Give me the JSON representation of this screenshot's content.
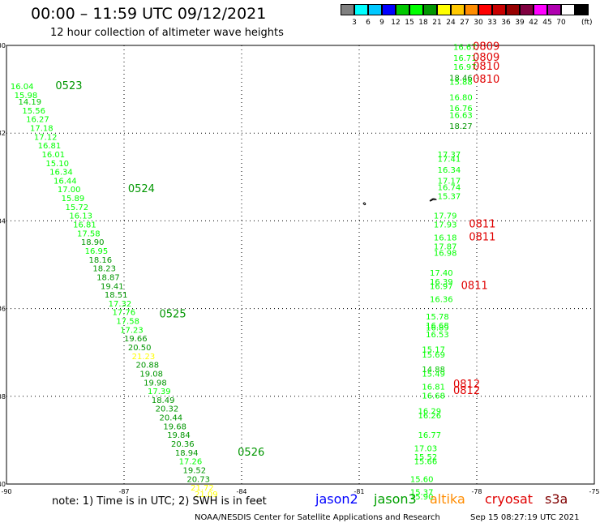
{
  "header": {
    "title": "00:00 – 11:59 UTC 09/12/2021",
    "subtitle": "12 hour collection of altimeter wave heights"
  },
  "colorbar": {
    "colors": [
      "#808080",
      "#00ffff",
      "#00c8ff",
      "#0000ff",
      "#00c800",
      "#00ff00",
      "#009600",
      "#ffff00",
      "#ffc800",
      "#ff8c00",
      "#ff0000",
      "#c80000",
      "#960000",
      "#800040",
      "#ff00ff",
      "#b000b0",
      "#ffffff",
      "#000000"
    ],
    "labels": [
      "3",
      "6",
      "9",
      "12",
      "15",
      "18",
      "21",
      "24",
      "27",
      "30",
      "33",
      "36",
      "39",
      "42",
      "45",
      "70"
    ],
    "unit": "(ft)"
  },
  "footer": {
    "note": "note: 1) Time is in UTC; 2) SWH is in feet",
    "satellites": [
      {
        "name": "jason2",
        "color": "#0000ff"
      },
      {
        "name": "jason3",
        "color": "#00a000"
      },
      {
        "name": "altika",
        "color": "#ff8c00"
      },
      {
        "name": "cryosat",
        "color": "#e00000"
      },
      {
        "name": "s3a",
        "color": "#800000"
      }
    ],
    "credit": "NOAA/NESDIS Center for Satellite Applications and Research",
    "stamp": "Sep 15 08:27:19 UTC 2021"
  },
  "chart_data": {
    "type": "scatter",
    "xlim": [
      -90,
      -75
    ],
    "ylim": [
      -40,
      -30
    ],
    "x_ticks": [
      "-90",
      "-87",
      "-84",
      "-81",
      "-78",
      "-75"
    ],
    "y_ticks": [
      "-30",
      "-32",
      "-34",
      "-36",
      "-38",
      "-40"
    ],
    "grid": true,
    "series": [
      {
        "name": "jason3",
        "points": [
          {
            "x": -89.9,
            "y": -31.0,
            "v": "16.04"
          },
          {
            "x": -89.8,
            "y": -31.2,
            "v": "15.98"
          },
          {
            "x": -89.7,
            "y": -31.35,
            "v": "14.19"
          },
          {
            "x": -89.6,
            "y": -31.55,
            "v": "15.56"
          },
          {
            "x": -89.5,
            "y": -31.75,
            "v": "16.27"
          },
          {
            "x": -89.4,
            "y": -31.95,
            "v": "17.18"
          },
          {
            "x": -89.3,
            "y": -32.15,
            "v": "17.12"
          },
          {
            "x": -89.2,
            "y": -32.35,
            "v": "16.81"
          },
          {
            "x": -89.1,
            "y": -32.55,
            "v": "16.01"
          },
          {
            "x": -89.0,
            "y": -32.75,
            "v": "15.10"
          },
          {
            "x": -88.9,
            "y": -32.95,
            "v": "16.34"
          },
          {
            "x": -88.8,
            "y": -33.15,
            "v": "16.44"
          },
          {
            "x": -88.7,
            "y": -33.35,
            "v": "17.00"
          },
          {
            "x": -88.6,
            "y": -33.55,
            "v": "15.89"
          },
          {
            "x": -88.5,
            "y": -33.75,
            "v": "15.72"
          },
          {
            "x": -88.4,
            "y": -33.95,
            "v": "16.13"
          },
          {
            "x": -88.3,
            "y": -34.15,
            "v": "16.81"
          },
          {
            "x": -88.2,
            "y": -34.35,
            "v": "17.58"
          },
          {
            "x": -88.1,
            "y": -34.55,
            "v": "18.90"
          },
          {
            "x": -88.0,
            "y": -34.75,
            "v": "16.95"
          },
          {
            "x": -87.9,
            "y": -34.95,
            "v": "18.16"
          },
          {
            "x": -87.8,
            "y": -35.15,
            "v": "18.23"
          },
          {
            "x": -87.7,
            "y": -35.35,
            "v": "18.87"
          },
          {
            "x": -87.6,
            "y": -35.55,
            "v": "19.41"
          },
          {
            "x": -87.5,
            "y": -35.75,
            "v": "18.51"
          },
          {
            "x": -87.4,
            "y": -35.95,
            "v": "17.32"
          },
          {
            "x": -87.3,
            "y": -36.15,
            "v": "17.76"
          },
          {
            "x": -87.2,
            "y": -36.35,
            "v": "17.58"
          },
          {
            "x": -87.1,
            "y": -36.55,
            "v": "17.23"
          },
          {
            "x": -87.0,
            "y": -36.75,
            "v": "19.66"
          },
          {
            "x": -86.9,
            "y": -36.95,
            "v": "20.50"
          },
          {
            "x": -86.8,
            "y": -37.15,
            "v": "21.23"
          },
          {
            "x": -86.7,
            "y": -37.35,
            "v": "20.88"
          },
          {
            "x": -86.6,
            "y": -37.55,
            "v": "19.08"
          },
          {
            "x": -86.5,
            "y": -37.75,
            "v": "19.98"
          },
          {
            "x": -86.4,
            "y": -37.95,
            "v": "17.39"
          },
          {
            "x": -86.3,
            "y": -38.15,
            "v": "18.49"
          },
          {
            "x": -86.2,
            "y": -38.35,
            "v": "20.32"
          },
          {
            "x": -86.1,
            "y": -38.55,
            "v": "20.44"
          },
          {
            "x": -86.0,
            "y": -38.75,
            "v": "19.68"
          },
          {
            "x": -85.9,
            "y": -38.95,
            "v": "19.84"
          },
          {
            "x": -85.8,
            "y": -39.15,
            "v": "20.36"
          },
          {
            "x": -85.7,
            "y": -39.35,
            "v": "18.94"
          },
          {
            "x": -85.6,
            "y": -39.55,
            "v": "17.26"
          },
          {
            "x": -85.5,
            "y": -39.75,
            "v": "19.52"
          },
          {
            "x": -85.4,
            "y": -39.95,
            "v": "20.73"
          },
          {
            "x": -85.3,
            "y": -40.15,
            "v": "21.72"
          },
          {
            "x": -85.2,
            "y": -40.3,
            "v": "21.09"
          },
          {
            "x": -78.6,
            "y": -30.1,
            "v": "16.67"
          },
          {
            "x": -78.6,
            "y": -30.35,
            "v": "16.71"
          },
          {
            "x": -78.6,
            "y": -30.55,
            "v": "16.97"
          },
          {
            "x": -78.7,
            "y": -30.8,
            "v": "18.46"
          },
          {
            "x": -78.7,
            "y": -30.9,
            "v": "15.88"
          },
          {
            "x": -78.7,
            "y": -31.25,
            "v": "16.80"
          },
          {
            "x": -78.7,
            "y": -31.5,
            "v": "16.76"
          },
          {
            "x": -78.7,
            "y": -31.65,
            "v": "16.63"
          },
          {
            "x": -78.7,
            "y": -31.9,
            "v": "18.27"
          },
          {
            "x": -79.0,
            "y": -32.55,
            "v": "17.37"
          },
          {
            "x": -79.0,
            "y": -32.65,
            "v": "17.41"
          },
          {
            "x": -79.0,
            "y": -32.9,
            "v": "16.34"
          },
          {
            "x": -79.0,
            "y": -33.15,
            "v": "17.17"
          },
          {
            "x": -79.0,
            "y": -33.3,
            "v": "16.74"
          },
          {
            "x": -79.0,
            "y": -33.5,
            "v": "15.37"
          },
          {
            "x": -79.1,
            "y": -33.95,
            "v": "17.79"
          },
          {
            "x": -79.1,
            "y": -34.15,
            "v": "17.93"
          },
          {
            "x": -79.1,
            "y": -34.45,
            "v": "16.18"
          },
          {
            "x": -79.1,
            "y": -34.65,
            "v": "17.87"
          },
          {
            "x": -79.1,
            "y": -34.8,
            "v": "16.98"
          },
          {
            "x": -79.2,
            "y": -35.25,
            "v": "17.40"
          },
          {
            "x": -79.2,
            "y": -35.45,
            "v": "16.39"
          },
          {
            "x": -79.2,
            "y": -35.55,
            "v": "16.97"
          },
          {
            "x": -79.2,
            "y": -35.85,
            "v": "16.36"
          },
          {
            "x": -79.3,
            "y": -36.25,
            "v": "15.78"
          },
          {
            "x": -79.3,
            "y": -36.45,
            "v": "16.68"
          },
          {
            "x": -79.3,
            "y": -36.5,
            "v": "16.89"
          },
          {
            "x": -79.3,
            "y": -36.65,
            "v": "16.53"
          },
          {
            "x": -79.4,
            "y": -37.0,
            "v": "15.17"
          },
          {
            "x": -79.4,
            "y": -37.12,
            "v": "15.69"
          },
          {
            "x": -79.4,
            "y": -37.45,
            "v": "14.88"
          },
          {
            "x": -79.4,
            "y": -37.55,
            "v": "15.49"
          },
          {
            "x": -79.4,
            "y": -37.85,
            "v": "16.81"
          },
          {
            "x": -79.4,
            "y": -38.05,
            "v": "16.68"
          },
          {
            "x": -79.5,
            "y": -38.4,
            "v": "16.29"
          },
          {
            "x": -79.5,
            "y": -38.5,
            "v": "16.26"
          },
          {
            "x": -79.5,
            "y": -38.95,
            "v": "16.77"
          },
          {
            "x": -79.6,
            "y": -39.25,
            "v": "17.03"
          },
          {
            "x": -79.6,
            "y": -39.45,
            "v": "15.52"
          },
          {
            "x": -79.6,
            "y": -39.55,
            "v": "15.66"
          },
          {
            "x": -79.7,
            "y": -39.95,
            "v": "15.60"
          },
          {
            "x": -79.7,
            "y": -40.25,
            "v": "15.37"
          },
          {
            "x": -79.7,
            "y": -40.35,
            "v": "15.90"
          }
        ]
      }
    ],
    "time_labels": [
      {
        "x": -88.75,
        "y": -31.0,
        "v": "0523",
        "color": "#009600"
      },
      {
        "x": -86.9,
        "y": -33.35,
        "v": "0524",
        "color": "#009600"
      },
      {
        "x": -86.1,
        "y": -36.2,
        "v": "0525",
        "color": "#009600"
      },
      {
        "x": -84.1,
        "y": -39.35,
        "v": "0526",
        "color": "#009600"
      },
      {
        "x": -78.1,
        "y": -30.1,
        "v": "0809",
        "color": "#e00000"
      },
      {
        "x": -78.1,
        "y": -30.35,
        "v": "0809",
        "color": "#e00000"
      },
      {
        "x": -78.1,
        "y": -30.55,
        "v": "0810",
        "color": "#e00000"
      },
      {
        "x": -78.1,
        "y": -30.85,
        "v": "0810",
        "color": "#e00000"
      },
      {
        "x": -78.2,
        "y": -34.15,
        "v": "0811",
        "color": "#e00000"
      },
      {
        "x": -78.2,
        "y": -34.45,
        "v": "0811",
        "color": "#e00000"
      },
      {
        "x": -78.4,
        "y": -35.55,
        "v": "0811",
        "color": "#e00000"
      },
      {
        "x": -78.6,
        "y": -37.8,
        "v": "0812",
        "color": "#e00000"
      },
      {
        "x": -78.6,
        "y": -37.95,
        "v": "0812",
        "color": "#e00000"
      }
    ]
  }
}
